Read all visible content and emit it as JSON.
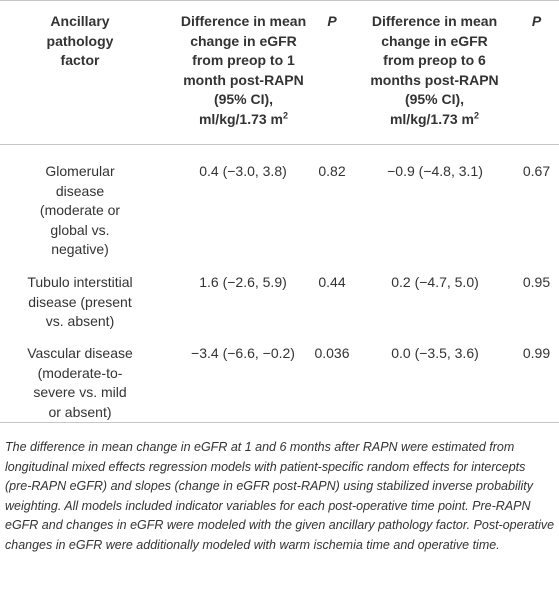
{
  "table": {
    "headers": {
      "factor": "Ancillary pathology factor",
      "diff1_line1": "Difference in mean",
      "diff1_line2": "change in eGFR",
      "diff1_line3": "from preop to 1",
      "diff1_line4": "month post-RAPN",
      "diff1_line5": "(95% CI),",
      "diff1_line6": "ml/kg/1.73 m",
      "diff1_sup": "2",
      "p1": "P",
      "diff2_line1": "Difference in mean",
      "diff2_line2": "change in eGFR",
      "diff2_line3": "from preop to 6",
      "diff2_line4": "months post-RAPN",
      "diff2_line5": "(95% CI),",
      "diff2_line6": "ml/kg/1.73 m",
      "diff2_sup": "2",
      "p2": "P"
    },
    "rows": [
      {
        "factor_lines": [
          "Glomerular",
          "disease",
          "(moderate or",
          "global vs.",
          "negative)"
        ],
        "diff1": "0.4 (−3.0, 3.8)",
        "p1": "0.82",
        "diff2": "−0.9 (−4.8, 3.1)",
        "p2": "0.67"
      },
      {
        "factor_lines": [
          "Tubulo interstitial",
          "disease (present",
          "vs. absent)"
        ],
        "diff1": "1.6 (−2.6, 5.9)",
        "p1": "0.44",
        "diff2": "0.2 (−4.7, 5.0)",
        "p2": "0.95"
      },
      {
        "factor_lines": [
          "Vascular disease",
          "(moderate-to-",
          "severe vs. mild",
          "or absent)"
        ],
        "diff1": "−3.4 (−6.6, −0.2)",
        "p1": "0.036",
        "diff2": "0.0 (−3.5, 3.6)",
        "p2": "0.99"
      }
    ]
  },
  "footnote": "The difference in mean change in eGFR at 1 and 6 months after RAPN were estimated from longitudinal mixed effects regression models with patient-specific random effects for intercepts (pre-RAPN eGFR) and slopes (change in eGFR post-RAPN) using stabilized inverse probability weighting. All models included indicator variables for each post-operative time point. Pre-RAPN eGFR and changes in eGFR were modeled with the given ancillary pathology factor. Post-operative changes in eGFR were additionally modeled with warm ischemia time and operative time."
}
